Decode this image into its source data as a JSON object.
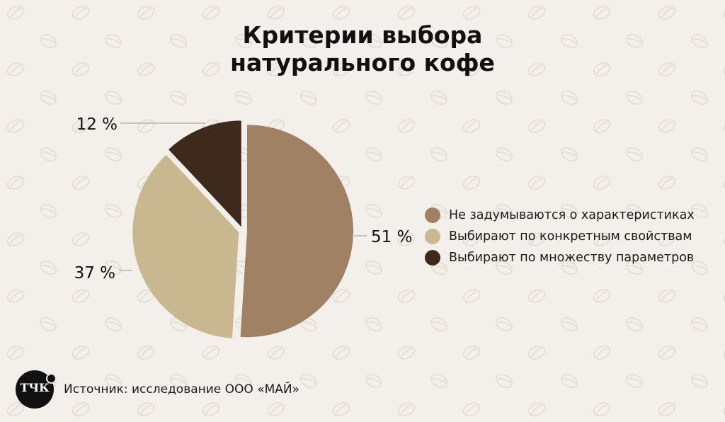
{
  "chart_data": {
    "type": "pie",
    "title": [
      "Критерии выбора",
      "натурального кофе"
    ],
    "slices": [
      {
        "label": "Не задумываются о характеристиках",
        "value": 51,
        "value_label": "51 %",
        "color": "#a08163"
      },
      {
        "label": "Выбирают по конкретным свойствам",
        "value": 37,
        "value_label": "37 %",
        "color": "#c8b78f"
      },
      {
        "label": "Выбирают по множеству параметров",
        "value": 12,
        "value_label": "12 %",
        "color": "#3e2a1d"
      }
    ],
    "legend_position": "right"
  },
  "logo": {
    "text": "ТЧК"
  },
  "source": "Источник: исследование ООО «МАЙ»",
  "colors": {
    "background": "#f3efeb",
    "pattern": "#e5dfd7"
  }
}
